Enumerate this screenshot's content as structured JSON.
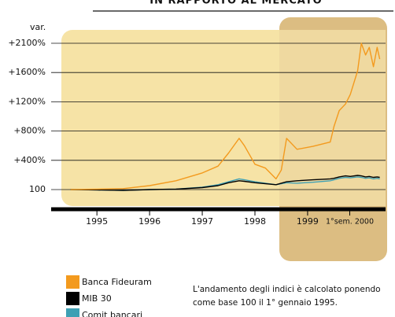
{
  "chart_data": {
    "type": "line",
    "title": "IN RAPPORTO AL MERCATO",
    "y_label": "var.",
    "annotations": [
      "L'andamento degli indici è calcolato ponendo",
      "come base 100 il 1° gennaio 1995."
    ],
    "x": [
      1995.0,
      1995.5,
      1996.0,
      1996.5,
      1997.0,
      1997.5,
      1997.8,
      1998.0,
      1998.2,
      1998.3,
      1998.5,
      1998.7,
      1998.9,
      1999.0,
      1999.1,
      1999.3,
      1999.6,
      1999.93,
      2000.0,
      2000.1,
      2000.22,
      2000.31,
      2000.45,
      2000.52,
      2000.6,
      2000.67,
      2000.75,
      2000.82,
      2000.87
    ],
    "series": [
      {
        "name": "Banca Fideuram",
        "color": "#f39a1e",
        "values": [
          100,
          105,
          110,
          140,
          190,
          270,
          340,
          500,
          700,
          600,
          360,
          320,
          210,
          300,
          700,
          550,
          590,
          650,
          860,
          1080,
          1170,
          1300,
          1630,
          2100,
          1900,
          2030,
          1700,
          2030,
          1830
        ]
      },
      {
        "name": "MIB 30",
        "color": "#000000",
        "values": [
          100,
          98,
          95,
          100,
          105,
          120,
          140,
          170,
          190,
          185,
          170,
          160,
          150,
          165,
          180,
          190,
          200,
          210,
          215,
          230,
          240,
          235,
          245,
          240,
          230,
          235,
          225,
          230,
          225
        ]
      },
      {
        "name": "Comit bancari",
        "color": "#3fa0b4",
        "values": [
          100,
          98,
          95,
          100,
          105,
          125,
          150,
          180,
          210,
          200,
          180,
          165,
          150,
          160,
          170,
          165,
          175,
          190,
          200,
          215,
          225,
          220,
          230,
          225,
          215,
          220,
          210,
          215,
          210
        ]
      }
    ],
    "xlim": [
      1994.9,
      2000.95
    ],
    "xticks": [
      {
        "value": 1995.5,
        "label": "1995"
      },
      {
        "value": 1996.5,
        "label": "1996"
      },
      {
        "value": 1997.5,
        "label": "1997"
      },
      {
        "value": 1998.5,
        "label": "1998"
      },
      {
        "value": 1999.5,
        "label": "1999"
      },
      {
        "value": 2000.3,
        "label": "1°sem. 2000"
      }
    ],
    "ylim": [
      0,
      2300
    ],
    "yticks": [
      100,
      {
        "value": 400,
        "label": "+400%"
      },
      {
        "value": 800,
        "label": "+800%"
      },
      {
        "value": 1200,
        "label": "+1200%"
      },
      {
        "value": 1600,
        "label": "+1600%"
      },
      {
        "value": 2100,
        "label": "+2100%"
      }
    ],
    "grid": true
  }
}
